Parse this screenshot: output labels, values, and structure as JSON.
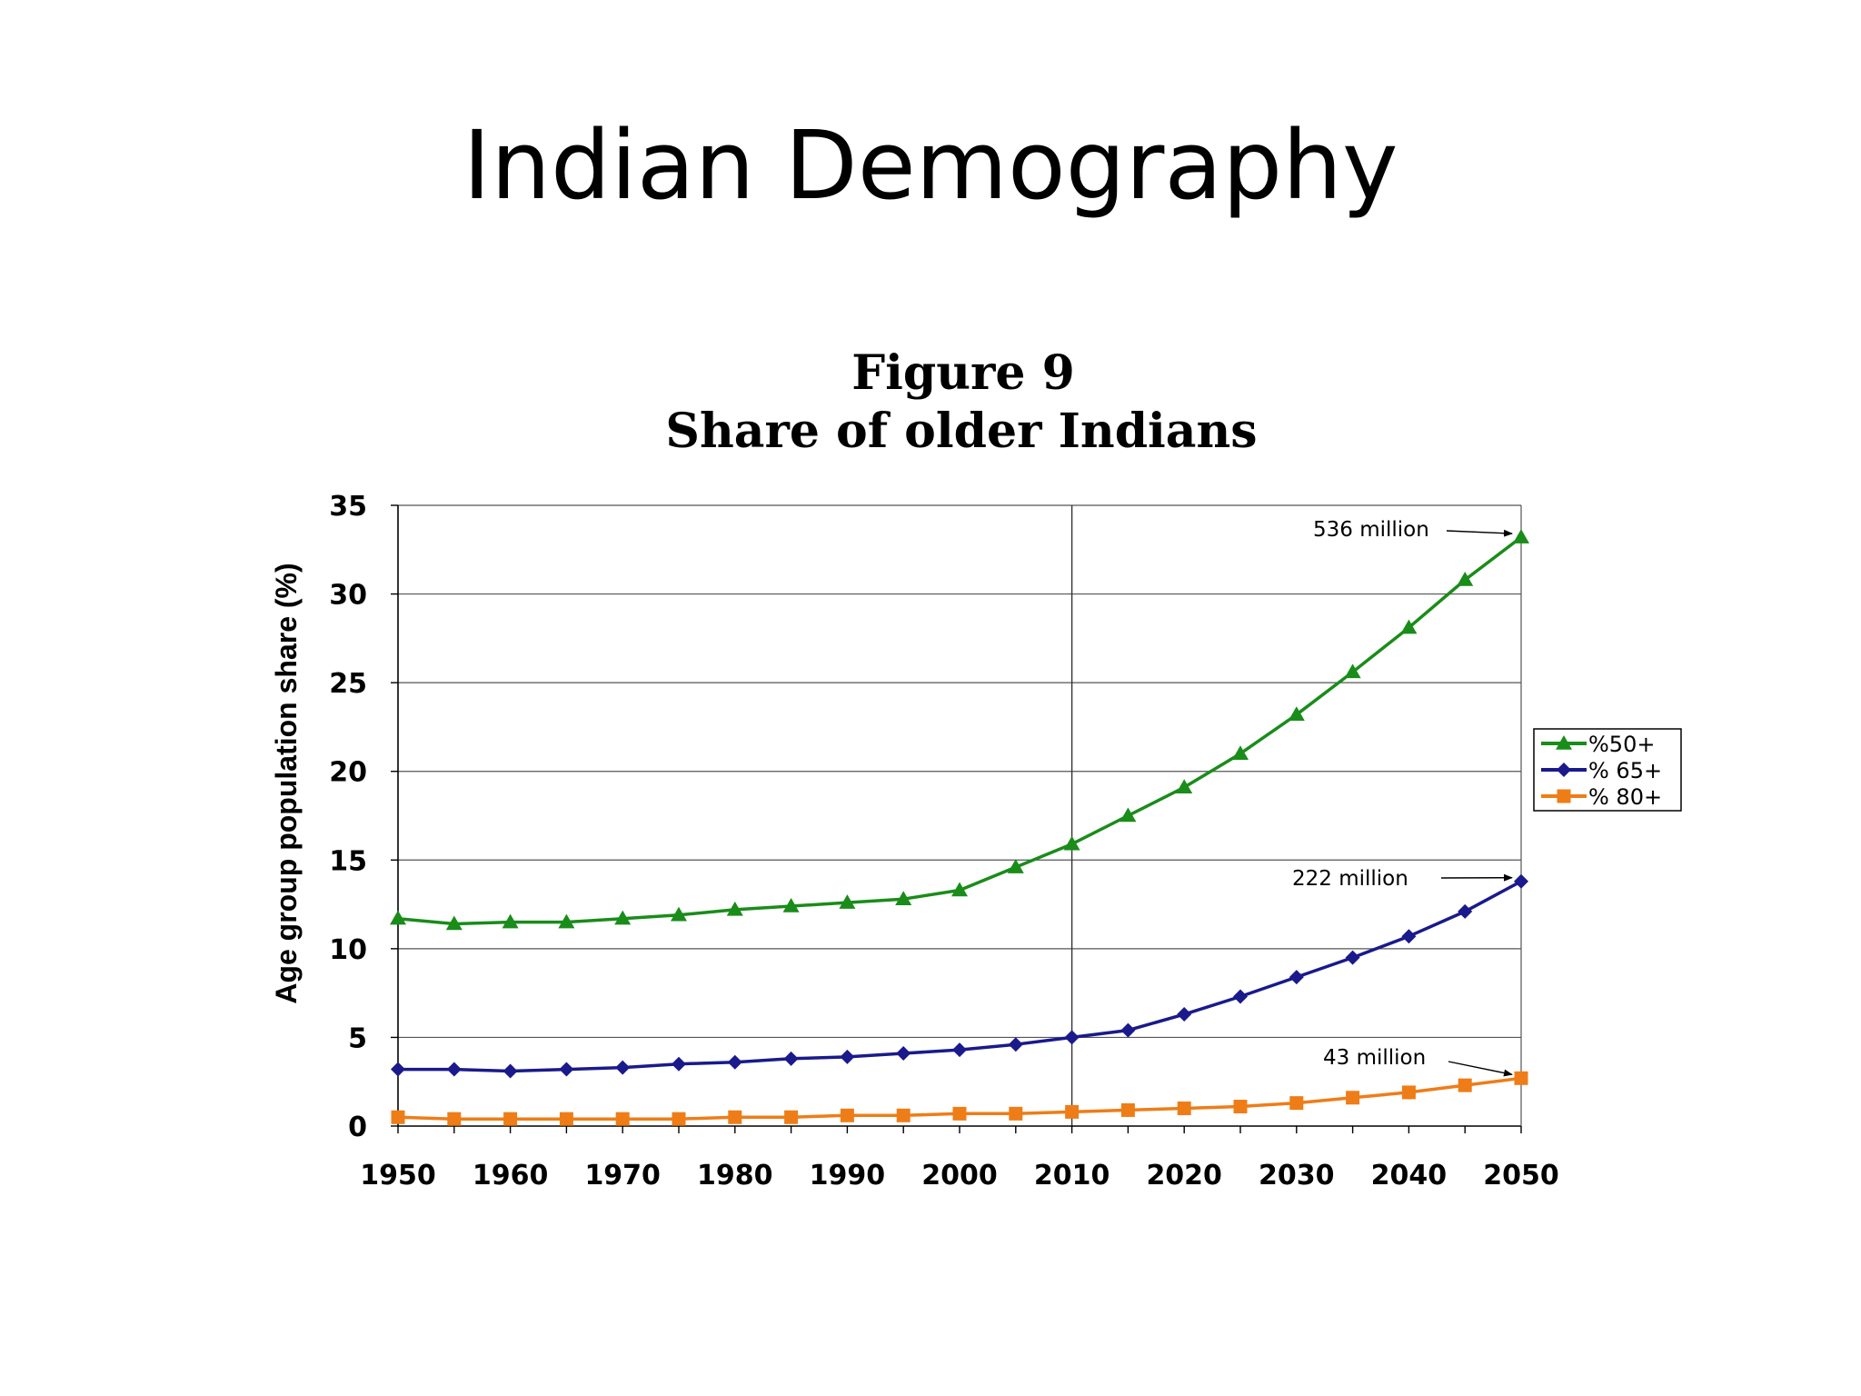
{
  "slide": {
    "title": "Indian Demography"
  },
  "chart_data": {
    "type": "line",
    "title": "Figure 9",
    "subtitle": "Share of older Indians",
    "xlabel": "",
    "ylabel": "Age group population share (%)",
    "xlim": [
      1950,
      2050
    ],
    "ylim": [
      0,
      35
    ],
    "xticks": [
      1950,
      1960,
      1970,
      1980,
      1990,
      2000,
      2010,
      2020,
      2030,
      2040,
      2050
    ],
    "yticks": [
      0,
      5,
      10,
      15,
      20,
      25,
      30,
      35
    ],
    "grid": "horizontal",
    "reference_line_x": 2010,
    "legend_position": "right",
    "x": [
      1950,
      1955,
      1960,
      1965,
      1970,
      1975,
      1980,
      1985,
      1990,
      1995,
      2000,
      2005,
      2010,
      2015,
      2020,
      2025,
      2030,
      2035,
      2040,
      2045,
      2050
    ],
    "series": [
      {
        "name": "%50+",
        "color": "#1a8c1a",
        "marker": "triangle",
        "values": [
          11.7,
          11.4,
          11.5,
          11.5,
          11.7,
          11.9,
          12.2,
          12.4,
          12.6,
          12.8,
          13.3,
          14.6,
          15.9,
          17.5,
          19.1,
          21.0,
          23.2,
          25.6,
          28.1,
          30.8,
          33.2
        ]
      },
      {
        "name": "% 65+",
        "color": "#1a1a8c",
        "marker": "diamond",
        "values": [
          3.2,
          3.2,
          3.1,
          3.2,
          3.3,
          3.5,
          3.6,
          3.8,
          3.9,
          4.1,
          4.3,
          4.6,
          5.0,
          5.4,
          6.3,
          7.3,
          8.4,
          9.5,
          10.7,
          12.1,
          13.8
        ]
      },
      {
        "name": "% 80+",
        "color": "#ee7d18",
        "marker": "square",
        "values": [
          0.5,
          0.4,
          0.4,
          0.4,
          0.4,
          0.4,
          0.5,
          0.5,
          0.6,
          0.6,
          0.7,
          0.7,
          0.8,
          0.9,
          1.0,
          1.1,
          1.3,
          1.6,
          1.9,
          2.3,
          2.7
        ]
      }
    ],
    "annotations": [
      {
        "text": "536 million",
        "series": 0
      },
      {
        "text": "222 million",
        "series": 1
      },
      {
        "text": "43 million",
        "series": 2
      }
    ]
  }
}
